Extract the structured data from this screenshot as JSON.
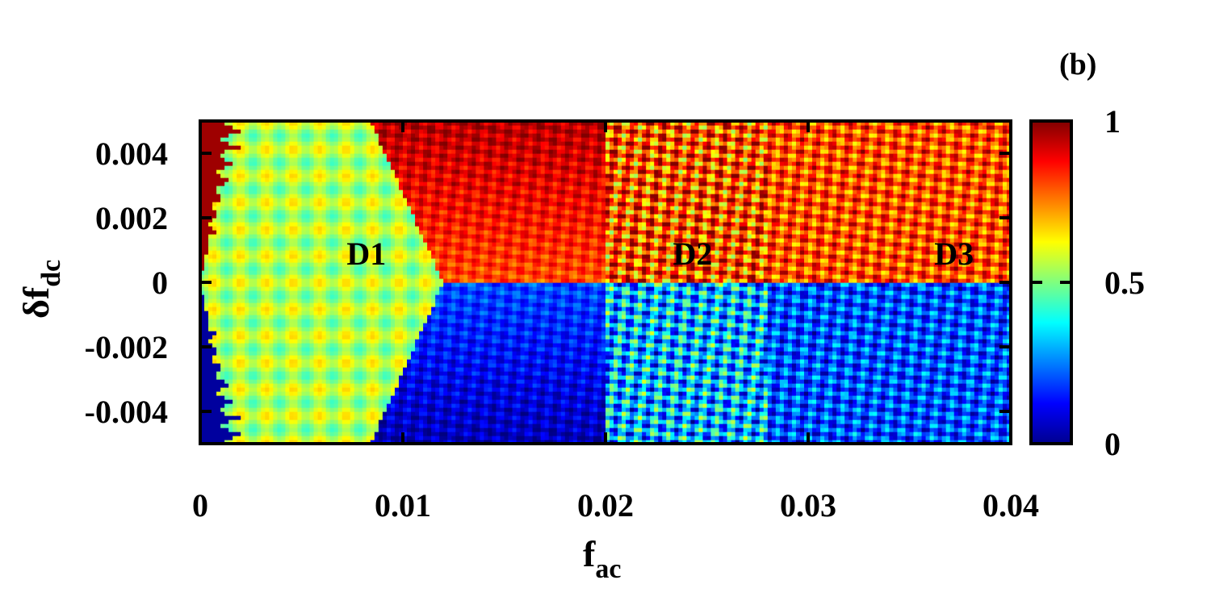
{
  "chart_data": {
    "type": "heatmap",
    "panel_label": "(b)",
    "xlabel": {
      "main": "f",
      "sub": "ac"
    },
    "ylabel": {
      "prefix": "δf",
      "sub": "dc"
    },
    "xlim": [
      0,
      0.04
    ],
    "ylim": [
      -0.005,
      0.005
    ],
    "x_ticks": [
      {
        "value": 0,
        "label": "0"
      },
      {
        "value": 0.01,
        "label": "0.01"
      },
      {
        "value": 0.02,
        "label": "0.02"
      },
      {
        "value": 0.03,
        "label": "0.03"
      },
      {
        "value": 0.04,
        "label": "0.04"
      }
    ],
    "y_ticks": [
      {
        "value": 0.004,
        "label": "0.004"
      },
      {
        "value": 0.002,
        "label": "0.002"
      },
      {
        "value": 0,
        "label": "0"
      },
      {
        "value": -0.002,
        "label": "-0.002"
      },
      {
        "value": -0.004,
        "label": "-0.004"
      }
    ],
    "colorbar": {
      "range": [
        0,
        1
      ],
      "colormap": "jet",
      "ticks": [
        {
          "value": 1,
          "label": "1"
        },
        {
          "value": 0.5,
          "label": "0.5"
        },
        {
          "value": 0,
          "label": "0"
        }
      ]
    },
    "annotations": [
      {
        "text": "D1",
        "x": 0.0082,
        "y": 0.0009
      },
      {
        "text": "D2",
        "x": 0.0243,
        "y": 0.0009
      },
      {
        "text": "D3",
        "x": 0.0372,
        "y": 0.0009
      }
    ],
    "regions": [
      {
        "name": "D1",
        "x_range": [
          0,
          0.012
        ],
        "upper_mean": 0.55,
        "lower_mean": 0.55,
        "description_value": "near 0.5 (symmetric)"
      },
      {
        "name": "D2",
        "x_range": [
          0.012,
          0.027
        ],
        "upper_mean": 0.85,
        "lower_mean": 0.3
      },
      {
        "name": "D3",
        "x_range": [
          0.027,
          0.04
        ],
        "upper_mean": 0.8,
        "lower_mean": 0.2
      }
    ],
    "grid": false
  }
}
